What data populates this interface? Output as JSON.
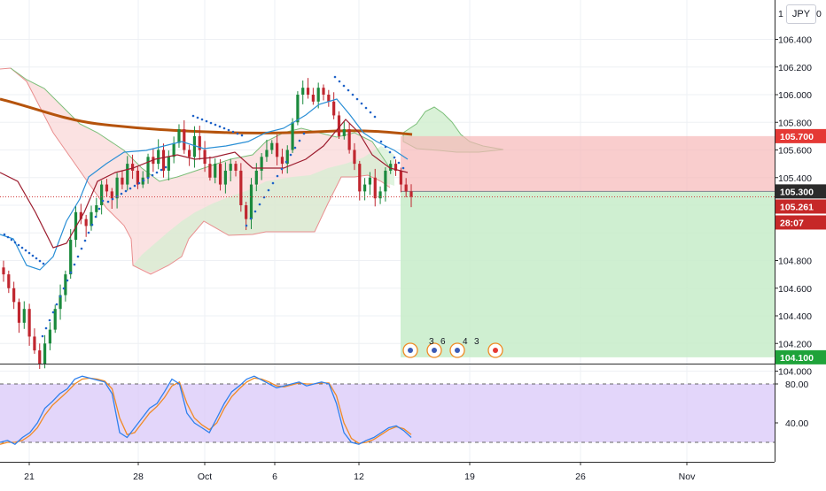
{
  "header": {
    "currency_badge": "JPY"
  },
  "price_axis": {
    "top_clipped_label": "1",
    "top_clipped_suffix": "0"
  },
  "annotations": {
    "events": [
      "3",
      "6",
      "4",
      "3"
    ]
  },
  "colors": {
    "candle_up": "#26a69a",
    "candle_down": "#ef5350",
    "up_candle": "#1b8a3d",
    "down_candle": "#c0262f",
    "ma200": "#b5530c",
    "tenkan": "#2a8fd6",
    "kijun": "#9c1c2e",
    "psar": "#1e63c8",
    "stoploss_zone": "#f7b8b8",
    "target_zone": "#c7ecc9",
    "stoch_band": "#d9c8f8",
    "stoch_k": "#2f80ed",
    "stoch_d": "#f08a24"
  },
  "chart_data": [
    {
      "type": "candlestick",
      "title": "",
      "symbol_currency": "JPY",
      "x_ticks": [
        "21",
        "28",
        "Oct",
        "6",
        "12",
        "19",
        "26",
        "Nov"
      ],
      "y_ticks": [
        104.0,
        104.2,
        104.4,
        104.6,
        104.8,
        105.0,
        105.2,
        105.4,
        105.6,
        105.8,
        106.0,
        106.2,
        106.4
      ],
      "ylim": [
        103.95,
        106.65
      ],
      "grid": true,
      "price_labels": [
        {
          "text": "105.700",
          "value": 105.7,
          "kind": "stop-loss"
        },
        {
          "text": "105.300",
          "value": 105.3,
          "kind": "entry"
        },
        {
          "text": "105.261",
          "value": 105.261,
          "kind": "last-price"
        },
        {
          "text": "28:07",
          "value": 105.21,
          "kind": "countdown"
        },
        {
          "text": "104.100",
          "value": 104.1,
          "kind": "take-profit"
        }
      ],
      "position": {
        "side": "short",
        "entry": 105.3,
        "stop_loss": 105.7,
        "take_profit": 104.1
      },
      "last_price": 105.261,
      "close_series": [
        104.7,
        104.6,
        104.5,
        104.35,
        104.45,
        104.25,
        104.15,
        104.05,
        104.2,
        104.3,
        104.45,
        104.55,
        104.7,
        104.95,
        105.15,
        105.1,
        105.05,
        105.15,
        105.2,
        105.35,
        105.3,
        105.25,
        105.4,
        105.35,
        105.5,
        105.45,
        105.35,
        105.4,
        105.55,
        105.5,
        105.6,
        105.45,
        105.55,
        105.65,
        105.75,
        105.6,
        105.55,
        105.7,
        105.6,
        105.5,
        105.4,
        105.5,
        105.35,
        105.45,
        105.5,
        105.45,
        105.2,
        105.1,
        105.35,
        105.45,
        105.55,
        105.6,
        105.65,
        105.55,
        105.5,
        105.6,
        105.8,
        106.0,
        106.05,
        106.0,
        105.95,
        106.05,
        106.0,
        105.95,
        105.85,
        105.7,
        105.75,
        105.6,
        105.5,
        105.3,
        105.35,
        105.4,
        105.25,
        105.3,
        105.45,
        105.5,
        105.45,
        105.35,
        105.3,
        105.261
      ]
    },
    {
      "type": "line",
      "title": "",
      "y_ticks": [
        40.0,
        80.0
      ],
      "y_tick_labels": [
        "40.00",
        "80.00"
      ],
      "ylim": [
        0,
        100
      ],
      "band": [
        20,
        80
      ],
      "series_k": [
        20,
        22,
        18,
        25,
        30,
        40,
        55,
        62,
        70,
        75,
        85,
        88,
        86,
        84,
        82,
        70,
        30,
        25,
        35,
        45,
        55,
        60,
        72,
        85,
        80,
        50,
        40,
        35,
        30,
        45,
        60,
        72,
        78,
        85,
        88,
        84,
        80,
        76,
        78,
        80,
        82,
        78,
        80,
        82,
        80,
        60,
        30,
        20,
        18,
        22,
        25,
        30,
        35,
        37,
        32,
        25
      ],
      "series_d": [
        18,
        20,
        20,
        22,
        27,
        35,
        48,
        58,
        65,
        72,
        80,
        85,
        86,
        85,
        83,
        75,
        45,
        28,
        30,
        40,
        50,
        57,
        66,
        78,
        82,
        60,
        45,
        38,
        33,
        40,
        55,
        67,
        75,
        82,
        86,
        85,
        82,
        78,
        77,
        79,
        81,
        80,
        80,
        81,
        81,
        68,
        40,
        24,
        19,
        20,
        23,
        28,
        33,
        36,
        34,
        28
      ]
    }
  ]
}
